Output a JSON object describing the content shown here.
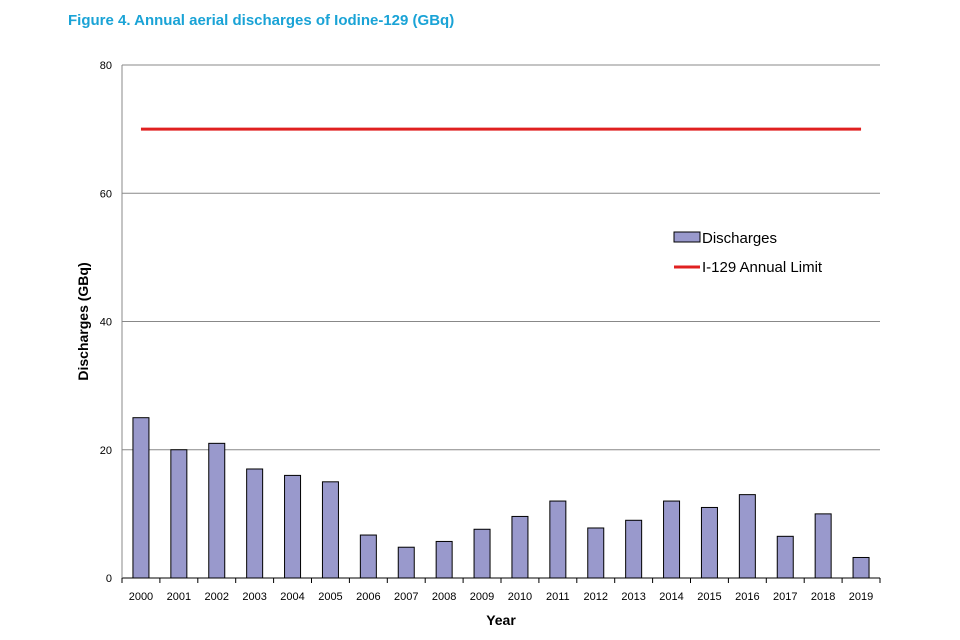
{
  "figure_title": "Figure 4.  Annual aerial discharges of Iodine-129 (GBq)",
  "colors": {
    "title": "#1aa3d6",
    "bar_fill": "#9999cc",
    "bar_stroke": "#000000",
    "limit_line": "#e02020",
    "grid": "#888888"
  },
  "chart_data": {
    "type": "bar",
    "title": "",
    "xlabel": "Year",
    "ylabel": "Discharges (GBq)",
    "ylim": [
      0,
      80
    ],
    "yticks": [
      0,
      20,
      40,
      60,
      80
    ],
    "grid": true,
    "legend_position": "right",
    "categories": [
      "2000",
      "2001",
      "2002",
      "2003",
      "2004",
      "2005",
      "2006",
      "2007",
      "2008",
      "2009",
      "2010",
      "2011",
      "2012",
      "2013",
      "2014",
      "2015",
      "2016",
      "2017",
      "2018",
      "2019"
    ],
    "series": [
      {
        "name": "Discharges",
        "kind": "bar",
        "values": [
          25,
          20,
          21,
          17,
          16,
          15,
          6.7,
          4.8,
          5.7,
          7.6,
          9.6,
          12,
          7.8,
          9,
          12,
          11,
          13,
          6.5,
          10,
          3.2
        ]
      },
      {
        "name": "I-129 Annual Limit",
        "kind": "line",
        "values": [
          70,
          70,
          70,
          70,
          70,
          70,
          70,
          70,
          70,
          70,
          70,
          70,
          70,
          70,
          70,
          70,
          70,
          70,
          70,
          70
        ]
      }
    ]
  }
}
